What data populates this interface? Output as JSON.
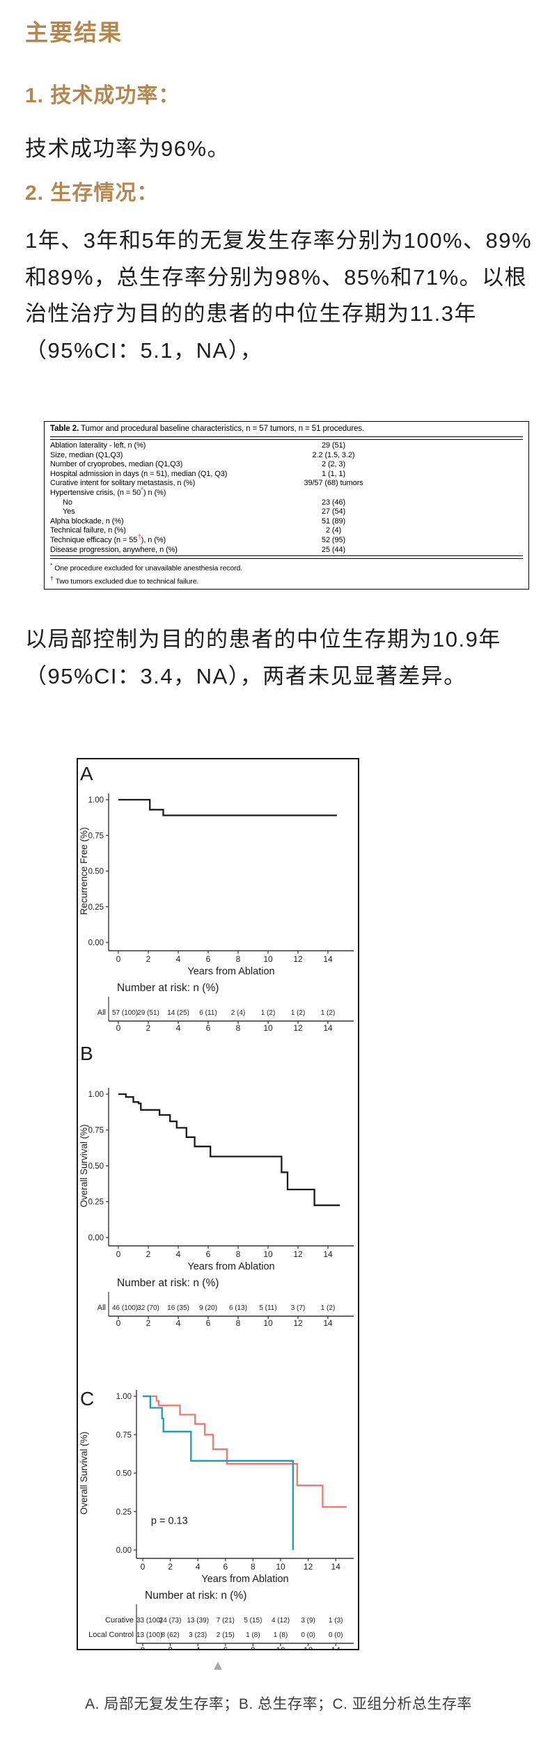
{
  "page": {
    "title": "主要结果",
    "sections": [
      {
        "heading": "1. 技术成功率：",
        "body": "技术成功率为96%。"
      },
      {
        "heading": "2. 生存情况：",
        "body": "1年、3年和5年的无复发生存率分别为100%、89%和89%，总生存率分别为98%、85%和71%。以根治性治疗为目的的患者的中位生存期为11.3年（95%CI：5.1，NA），"
      }
    ],
    "paragraph_after_table": "以局部控制为目的的患者的中位生存期为10.9年（95%CI：3.4，NA），两者未见显著差异。",
    "expand_icon": "▲",
    "caption": "A. 局部无复发生存率；B. 总生存率；C. 亚组分析总生存率"
  },
  "colors": {
    "accent": "#b5874e",
    "marker": "#e53935",
    "triangle": "#a9a9a9",
    "curve_black": "#1b1b1b",
    "curative_red": "#F8766D",
    "local_control_blue": "#0fa0c8"
  },
  "table2": {
    "title_bold": "Table 2.",
    "title_rest": " Tumor and procedural baseline characteristics, n = 57 tumors, n = 51 procedures.",
    "rows": [
      {
        "label_pre": "Ablation laterality - left, n (%)",
        "marker": "",
        "label_post": "",
        "value": "29 (51)",
        "indent": 0
      },
      {
        "label_pre": "Size, median (Q1,Q3)",
        "marker": "",
        "label_post": "",
        "value": "2.2 (1.5, 3.2)",
        "indent": 0
      },
      {
        "label_pre": "Number of cryoprobes, median (Q1,Q3)",
        "marker": "",
        "label_post": "",
        "value": "2 (2, 3)",
        "indent": 0
      },
      {
        "label_pre": "Hospital admission in days (n = 51), median (Q1, Q3)",
        "marker": "",
        "label_post": "",
        "value": "1 (1, 1)",
        "indent": 0
      },
      {
        "label_pre": "Curative intent for solitary metastasis, n (%)",
        "marker": "",
        "label_post": "",
        "value": "39/57 (68) tumors",
        "indent": 0
      },
      {
        "label_pre": "Hypertensive crisis, (n = 50",
        "marker": "*",
        "label_post": ") n (%)",
        "value": "",
        "indent": 0
      },
      {
        "label_pre": "No",
        "marker": "",
        "label_post": "",
        "value": "23 (46)",
        "indent": 1
      },
      {
        "label_pre": "Yes",
        "marker": "",
        "label_post": "",
        "value": "27 (54)",
        "indent": 1
      },
      {
        "label_pre": "Alpha blockade, n (%)",
        "marker": "",
        "label_post": "",
        "value": "51 (89)",
        "indent": 0
      },
      {
        "label_pre": "Technical failure, n (%)",
        "marker": "",
        "label_post": "",
        "value": "2 (4)",
        "indent": 0
      },
      {
        "label_pre": "Technique efficacy (n = 55",
        "marker": "†",
        "label_post": "), n (%)",
        "value": "52 (95)",
        "indent": 0
      },
      {
        "label_pre": "Disease progression, anywhere, n (%)",
        "marker": "",
        "label_post": "",
        "value": "25 (44)",
        "indent": 0
      }
    ],
    "footnotes": [
      {
        "marker": "*",
        "text": "One procedure excluded for unavailable anesthesia record."
      },
      {
        "marker": "†",
        "text": "Two tumors excluded due to technical failure."
      }
    ]
  },
  "chart_data": [
    {
      "type": "line",
      "panel": "A",
      "ylabel": "Recurrence Free (%)",
      "xlabel": "Years from Ablation",
      "ylim": [
        0,
        1
      ],
      "xlim": [
        0,
        15.5
      ],
      "ytick_labels": [
        "1.00",
        "0.75",
        "0.50",
        "0.25",
        "0.00"
      ],
      "ytick_values": [
        1,
        0.75,
        0.5,
        0.25,
        0
      ],
      "xticks": [
        0,
        2,
        4,
        6,
        8,
        10,
        12,
        14
      ],
      "grid": false,
      "series": [
        {
          "name": "All",
          "color": "#1b1b1b",
          "steps": [
            [
              0,
              1
            ],
            [
              2.1,
              1
            ],
            [
              2.1,
              0.93
            ],
            [
              3,
              0.93
            ],
            [
              3,
              0.89
            ],
            [
              14.6,
              0.89
            ]
          ]
        }
      ],
      "risk_header": "Number at risk: n (%)",
      "risk_rows": [
        {
          "label": "All",
          "color": "#1d1d1d",
          "values": [
            "57 (100)",
            "29 (51)",
            "14 (25)",
            "6 (11)",
            "2 (4)",
            "1 (2)",
            "1 (2)",
            "1 (2)"
          ]
        }
      ]
    },
    {
      "type": "line",
      "panel": "B",
      "ylabel": "Overall Survival (%)",
      "xlabel": "Years from Ablation",
      "ylim": [
        0,
        1
      ],
      "xlim": [
        0,
        15.5
      ],
      "ytick_labels": [
        "1.00",
        "0.75",
        "0.50",
        "0.25",
        "0.00"
      ],
      "ytick_values": [
        1,
        0.75,
        0.5,
        0.25,
        0
      ],
      "xticks": [
        0,
        2,
        4,
        6,
        8,
        10,
        12,
        14
      ],
      "grid": false,
      "series": [
        {
          "name": "All",
          "color": "#1b1b1b",
          "steps": [
            [
              0,
              1
            ],
            [
              0.5,
              1
            ],
            [
              0.5,
              0.98
            ],
            [
              1,
              0.98
            ],
            [
              1,
              0.945
            ],
            [
              1.35,
              0.945
            ],
            [
              1.35,
              0.935
            ],
            [
              1.5,
              0.935
            ],
            [
              1.5,
              0.89
            ],
            [
              2.75,
              0.89
            ],
            [
              2.75,
              0.855
            ],
            [
              3.45,
              0.855
            ],
            [
              3.45,
              0.81
            ],
            [
              3.9,
              0.81
            ],
            [
              3.9,
              0.765
            ],
            [
              4.55,
              0.765
            ],
            [
              4.55,
              0.7
            ],
            [
              5.1,
              0.7
            ],
            [
              5.1,
              0.635
            ],
            [
              6.15,
              0.635
            ],
            [
              6.15,
              0.565
            ],
            [
              10.9,
              0.565
            ],
            [
              10.9,
              0.455
            ],
            [
              11.3,
              0.455
            ],
            [
              11.3,
              0.335
            ],
            [
              13.1,
              0.335
            ],
            [
              13.1,
              0.225
            ],
            [
              14.8,
              0.225
            ]
          ]
        }
      ],
      "risk_header": "Number at risk: n (%)",
      "risk_rows": [
        {
          "label": "All",
          "color": "#1d1d1d",
          "values": [
            "46 (100)",
            "32 (70)",
            "16 (35)",
            "9 (20)",
            "6 (13)",
            "5 (11)",
            "3 (7)",
            "1 (2)"
          ]
        }
      ]
    },
    {
      "type": "line",
      "panel": "C",
      "ylabel": "Overall Survival (%)",
      "xlabel": "Years from Ablation",
      "annotation": "p = 0.13",
      "ylim": [
        0,
        1
      ],
      "xlim": [
        0,
        15.5
      ],
      "ytick_labels": [
        "1.00",
        "0.75",
        "0.50",
        "0.25",
        "0.00"
      ],
      "ytick_values": [
        1,
        0.75,
        0.5,
        0.25,
        0
      ],
      "xticks": [
        0,
        2,
        4,
        6,
        8,
        10,
        12,
        14
      ],
      "grid": false,
      "legend_position": "risk-table",
      "series": [
        {
          "name": "Curative",
          "color": "#F8766D",
          "steps": [
            [
              0,
              1
            ],
            [
              1,
              1
            ],
            [
              1,
              0.97
            ],
            [
              1.15,
              0.97
            ],
            [
              1.15,
              0.94
            ],
            [
              2.7,
              0.94
            ],
            [
              2.7,
              0.88
            ],
            [
              3.8,
              0.88
            ],
            [
              3.8,
              0.82
            ],
            [
              4.5,
              0.82
            ],
            [
              4.5,
              0.75
            ],
            [
              5.1,
              0.75
            ],
            [
              5.1,
              0.655
            ],
            [
              6.1,
              0.655
            ],
            [
              6.1,
              0.56
            ],
            [
              11.2,
              0.56
            ],
            [
              11.2,
              0.42
            ],
            [
              13.05,
              0.42
            ],
            [
              13.05,
              0.28
            ],
            [
              14.8,
              0.28
            ]
          ]
        },
        {
          "name": "Local Control",
          "color": "#0fa0c8",
          "steps": [
            [
              0,
              1
            ],
            [
              0.55,
              1
            ],
            [
              0.55,
              0.925
            ],
            [
              1.4,
              0.925
            ],
            [
              1.4,
              0.855
            ],
            [
              1.5,
              0.855
            ],
            [
              1.5,
              0.77
            ],
            [
              3.5,
              0.77
            ],
            [
              3.5,
              0.58
            ],
            [
              10.9,
              0.58
            ],
            [
              10.9,
              0
            ]
          ]
        }
      ],
      "risk_header": "Number at risk: n (%)",
      "risk_rows": [
        {
          "label": "Curative",
          "color": "#F8766D",
          "values": [
            "33 (100)",
            "24 (73)",
            "13 (39)",
            "7 (21)",
            "5 (15)",
            "4 (12)",
            "3 (9)",
            "1 (3)"
          ]
        },
        {
          "label": "Local Control",
          "color": "#0fa0c8",
          "values": [
            "13 (100)",
            "8 (62)",
            "3 (23)",
            "2 (15)",
            "1 (8)",
            "1 (8)",
            "0 (0)",
            "0 (0)"
          ]
        }
      ]
    }
  ]
}
